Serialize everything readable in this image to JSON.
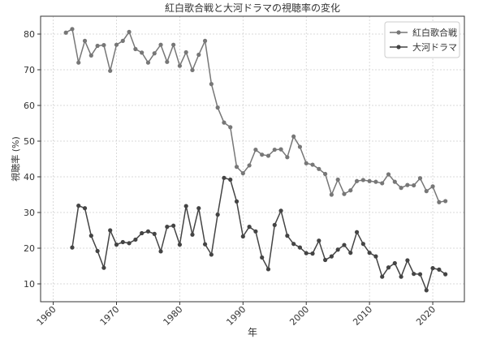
{
  "chart_data": {
    "type": "line",
    "title": "紅白歌合戦と大河ドラマの視聴率の変化",
    "xlabel": "年",
    "ylabel": "視聴率 (%)",
    "xlim": [
      1958,
      2025
    ],
    "ylim": [
      5,
      85
    ],
    "xticks": [
      1960,
      1970,
      1980,
      1990,
      2000,
      2010,
      2020
    ],
    "yticks": [
      10,
      20,
      30,
      40,
      50,
      60,
      70,
      80
    ],
    "grid": true,
    "legend_position": "top-right",
    "series": [
      {
        "name": "紅白歌合戦",
        "color": "#777777",
        "x": [
          1962,
          1963,
          1964,
          1965,
          1966,
          1967,
          1968,
          1969,
          1970,
          1971,
          1972,
          1973,
          1974,
          1975,
          1976,
          1977,
          1978,
          1979,
          1980,
          1981,
          1982,
          1983,
          1984,
          1985,
          1986,
          1987,
          1988,
          1989,
          1990,
          1991,
          1992,
          1993,
          1994,
          1995,
          1996,
          1997,
          1998,
          1999,
          2000,
          2001,
          2002,
          2003,
          2004,
          2005,
          2006,
          2007,
          2008,
          2009,
          2010,
          2011,
          2012,
          2013,
          2014,
          2015,
          2016,
          2017,
          2018,
          2019,
          2020,
          2021,
          2022
        ],
        "values": [
          80.4,
          81.4,
          72.0,
          78.1,
          74.0,
          76.7,
          76.9,
          69.7,
          77.0,
          78.1,
          80.6,
          75.8,
          74.8,
          72.0,
          74.6,
          77.0,
          72.2,
          77.0,
          71.1,
          74.9,
          69.9,
          74.2,
          78.1,
          66.0,
          59.4,
          55.2,
          53.9,
          42.8,
          41.0,
          43.2,
          47.6,
          46.2,
          45.9,
          47.6,
          47.7,
          45.5,
          51.3,
          48.4,
          43.8,
          43.4,
          42.2,
          40.8,
          35.0,
          39.2,
          35.2,
          36.2,
          38.8,
          39.1,
          38.8,
          38.6,
          38.2,
          40.7,
          38.6,
          36.9,
          37.7,
          37.6,
          39.6,
          36.0,
          37.3,
          32.9,
          33.2
        ]
      },
      {
        "name": "大河ドラマ",
        "color": "#444444",
        "x": [
          1963,
          1964,
          1965,
          1966,
          1967,
          1968,
          1969,
          1970,
          1971,
          1972,
          1973,
          1974,
          1975,
          1976,
          1977,
          1978,
          1979,
          1980,
          1981,
          1982,
          1983,
          1984,
          1985,
          1986,
          1987,
          1988,
          1989,
          1990,
          1991,
          1992,
          1993,
          1994,
          1995,
          1996,
          1997,
          1998,
          1999,
          2000,
          2001,
          2002,
          2003,
          2004,
          2005,
          2006,
          2007,
          2008,
          2009,
          2010,
          2011,
          2012,
          2013,
          2014,
          2015,
          2016,
          2017,
          2018,
          2019,
          2020,
          2021,
          2022
        ],
        "values": [
          20.2,
          31.9,
          31.2,
          23.5,
          19.2,
          14.5,
          25.0,
          21.0,
          21.7,
          21.4,
          22.4,
          24.2,
          24.7,
          24.0,
          19.1,
          26.0,
          26.3,
          21.0,
          31.8,
          23.8,
          31.2,
          21.1,
          18.2,
          29.4,
          39.7,
          39.2,
          33.1,
          23.3,
          26.0,
          24.7,
          17.4,
          14.1,
          26.5,
          30.5,
          23.5,
          21.2,
          20.2,
          18.6,
          18.5,
          22.1,
          16.7,
          17.7,
          19.6,
          20.9,
          18.7,
          24.5,
          21.2,
          18.7,
          17.7,
          12.0,
          14.6,
          15.8,
          12.0,
          16.6,
          12.8,
          12.7,
          8.2,
          14.4,
          14.0,
          12.7
        ]
      }
    ]
  }
}
